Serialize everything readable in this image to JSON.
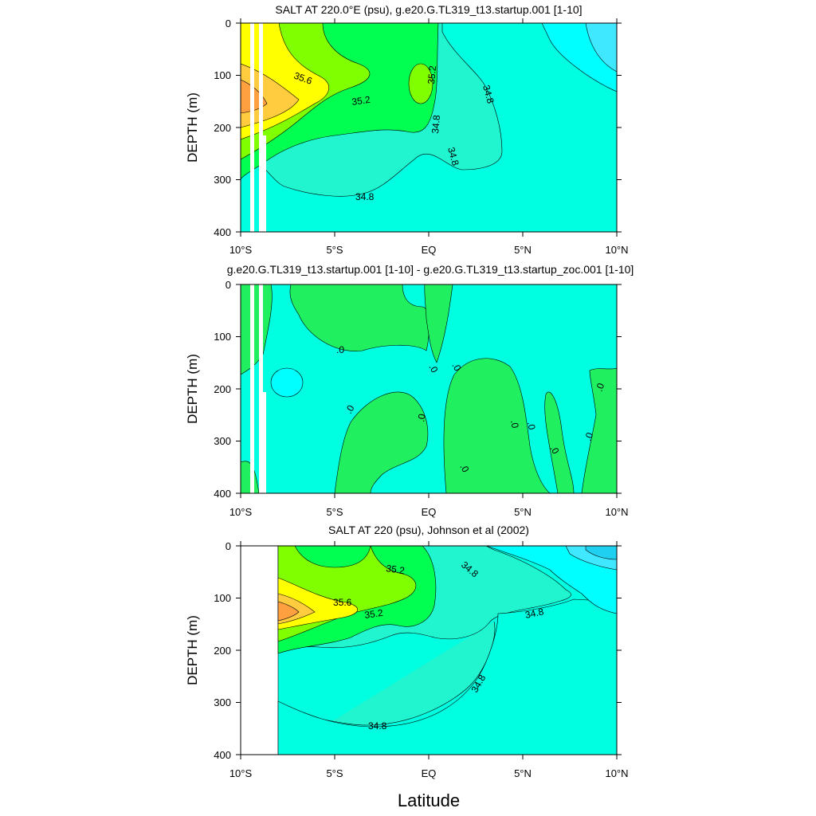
{
  "chart_data": [
    {
      "type": "contour",
      "title": "SALT AT 220.0°E (psu), g.e20.G.TL319_t13.startup.001 [1-10]",
      "ylabel": "DEPTH (m)",
      "xlabel": "",
      "xlim": [
        -10,
        10
      ],
      "ylim": [
        400,
        0
      ],
      "x_ticks": [
        "10°S",
        "5°S",
        "EQ",
        "5°N",
        "10°N"
      ],
      "y_ticks": [
        "0",
        "100",
        "200",
        "300",
        "400"
      ],
      "contour_labels": [
        "35.6",
        "35.2",
        "35.2",
        "34.8",
        "34.8",
        "34.8",
        "34.8"
      ],
      "colors": [
        "#00ffe0",
        "#20ffc8",
        "#00ff50",
        "#7fff00",
        "#c0ff00",
        "#ffff00",
        "#ffcc40",
        "#ffa040",
        "#00ffff"
      ]
    },
    {
      "type": "contour",
      "title": "g.e20.G.TL319_t13.startup.001 [1-10] - g.e20.G.TL319_t13.startup_zoc.001 [1-10]",
      "ylabel": "DEPTH (m)",
      "xlabel": "",
      "xlim": [
        -10,
        10
      ],
      "ylim": [
        400,
        0
      ],
      "x_ticks": [
        "10°S",
        "5°S",
        "EQ",
        "5°N",
        "10°N"
      ],
      "y_ticks": [
        "0",
        "100",
        "200",
        "300",
        "400"
      ],
      "contour_labels": [
        ".0",
        ".0",
        ".0",
        ".0",
        ".0",
        ".0",
        ".0",
        ".0",
        ".0",
        ".0",
        ".0"
      ],
      "colors": [
        "#00ffe0",
        "#20f060",
        "#00ffff"
      ]
    },
    {
      "type": "contour",
      "title": "SALT AT 220 (psu), Johnson et al (2002)",
      "ylabel": "DEPTH (m)",
      "xlabel": "Latitude",
      "xlim": [
        -10,
        10
      ],
      "ylim": [
        400,
        0
      ],
      "x_ticks": [
        "10°S",
        "5°S",
        "EQ",
        "5°N",
        "10°N"
      ],
      "y_ticks": [
        "0",
        "100",
        "200",
        "300",
        "400"
      ],
      "contour_labels": [
        "35.2",
        "35.6",
        "35.2",
        "34.8",
        "34.8",
        "34.8",
        "34.8"
      ],
      "colors": [
        "#00ffe0",
        "#20ffc8",
        "#00ff50",
        "#7fff00",
        "#c0ff00",
        "#ffff00",
        "#ffcc40",
        "#ffa040",
        "#00ffff"
      ]
    }
  ],
  "figure": {
    "xlabel": "Latitude"
  }
}
